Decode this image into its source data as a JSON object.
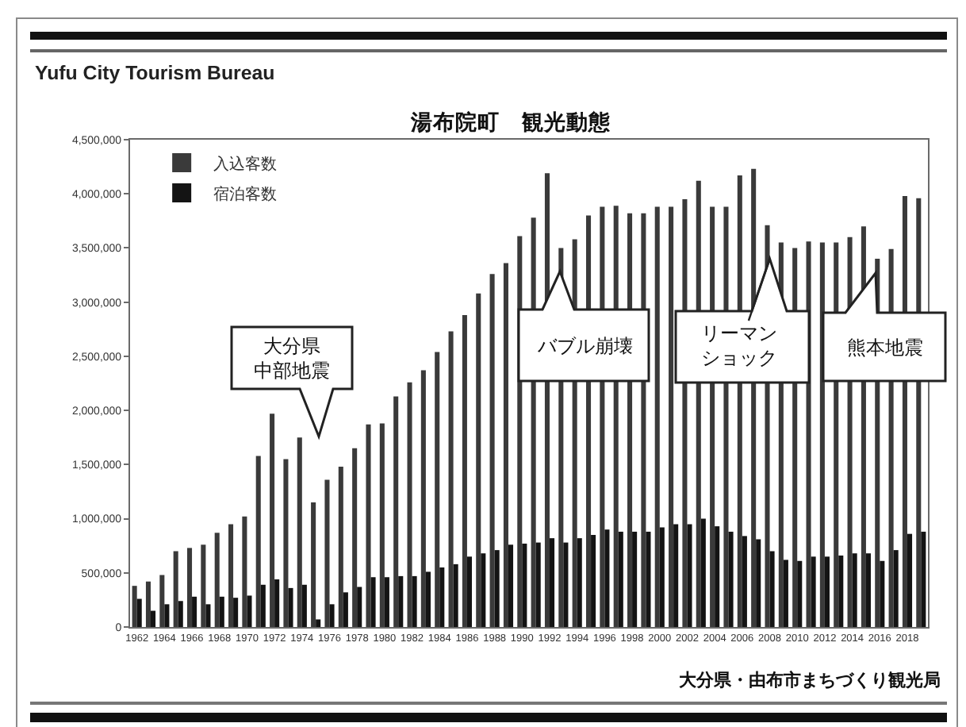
{
  "chart_data": {
    "type": "bar",
    "title": "湯布院町　観光動態",
    "subtitle": "Yufu City Tourism Bureau",
    "x": [
      1962,
      1963,
      1964,
      1965,
      1966,
      1967,
      1968,
      1969,
      1970,
      1971,
      1972,
      1973,
      1974,
      1975,
      1976,
      1977,
      1978,
      1979,
      1980,
      1981,
      1982,
      1983,
      1984,
      1985,
      1986,
      1987,
      1988,
      1989,
      1990,
      1991,
      1992,
      1993,
      1994,
      1995,
      1996,
      1997,
      1998,
      1999,
      2000,
      2001,
      2002,
      2003,
      2004,
      2005,
      2006,
      2007,
      2008,
      2009,
      2010,
      2011,
      2012,
      2013,
      2014,
      2015,
      2016,
      2017,
      2018,
      2019
    ],
    "series": [
      {
        "name": "入込客数",
        "color": "#3a3a3a",
        "values": [
          380000,
          420000,
          480000,
          700000,
          730000,
          760000,
          870000,
          950000,
          1020000,
          1580000,
          1970000,
          1550000,
          1750000,
          1150000,
          1360000,
          1480000,
          1650000,
          1870000,
          1880000,
          2130000,
          2260000,
          2370000,
          2540000,
          2730000,
          2880000,
          3080000,
          3260000,
          3360000,
          3610000,
          3780000,
          4190000,
          3500000,
          3580000,
          3800000,
          3880000,
          3890000,
          3820000,
          3820000,
          3880000,
          3880000,
          3950000,
          4120000,
          3880000,
          3880000,
          4170000,
          4230000,
          3710000,
          3550000,
          3500000,
          3560000,
          3550000,
          3550000,
          3600000,
          3700000,
          3400000,
          3490000,
          3980000,
          3960000
        ]
      },
      {
        "name": "宿泊客数",
        "color": "#141414",
        "values": [
          260000,
          150000,
          210000,
          240000,
          280000,
          210000,
          280000,
          270000,
          290000,
          390000,
          440000,
          360000,
          390000,
          70000,
          210000,
          320000,
          370000,
          460000,
          460000,
          470000,
          470000,
          510000,
          550000,
          580000,
          650000,
          680000,
          710000,
          760000,
          770000,
          780000,
          820000,
          780000,
          820000,
          850000,
          900000,
          880000,
          880000,
          880000,
          920000,
          950000,
          950000,
          1000000,
          930000,
          880000,
          840000,
          810000,
          700000,
          620000,
          610000,
          650000,
          650000,
          660000,
          680000,
          680000,
          610000,
          710000,
          860000,
          880000
        ]
      }
    ],
    "xlim": [
      1961.5,
      2019.5
    ],
    "xticks": [
      1962,
      1964,
      1966,
      1968,
      1970,
      1972,
      1974,
      1976,
      1978,
      1980,
      1982,
      1984,
      1986,
      1988,
      1990,
      1992,
      1994,
      1996,
      1998,
      2000,
      2002,
      2004,
      2006,
      2008,
      2010,
      2012,
      2014,
      2016,
      2018
    ],
    "ylim": [
      0,
      4500000
    ],
    "yticks": [
      0,
      {
        "value": 500000,
        "label": "500,000"
      },
      {
        "value": 1000000,
        "label": "1,000,000"
      },
      {
        "value": 1500000,
        "label": "1,500,000"
      },
      {
        "value": 2000000,
        "label": "2,000,000"
      },
      {
        "value": 2500000,
        "label": "2,500,000"
      },
      {
        "value": 3000000,
        "label": "3,000,000"
      },
      {
        "value": 3500000,
        "label": "3,500,000"
      },
      {
        "value": 4000000,
        "label": "4,000,000"
      },
      {
        "value": 4500000,
        "label": "4,500,000"
      }
    ],
    "legend": "top left",
    "annotations": [
      "大分県中部地震",
      "バブル崩壊",
      {
        "text": "リーマンショック",
        "x": 2008,
        "y": 3400000
      },
      "熊本地震",
      "大分県・由布市まちづくり観光局"
    ]
  }
}
